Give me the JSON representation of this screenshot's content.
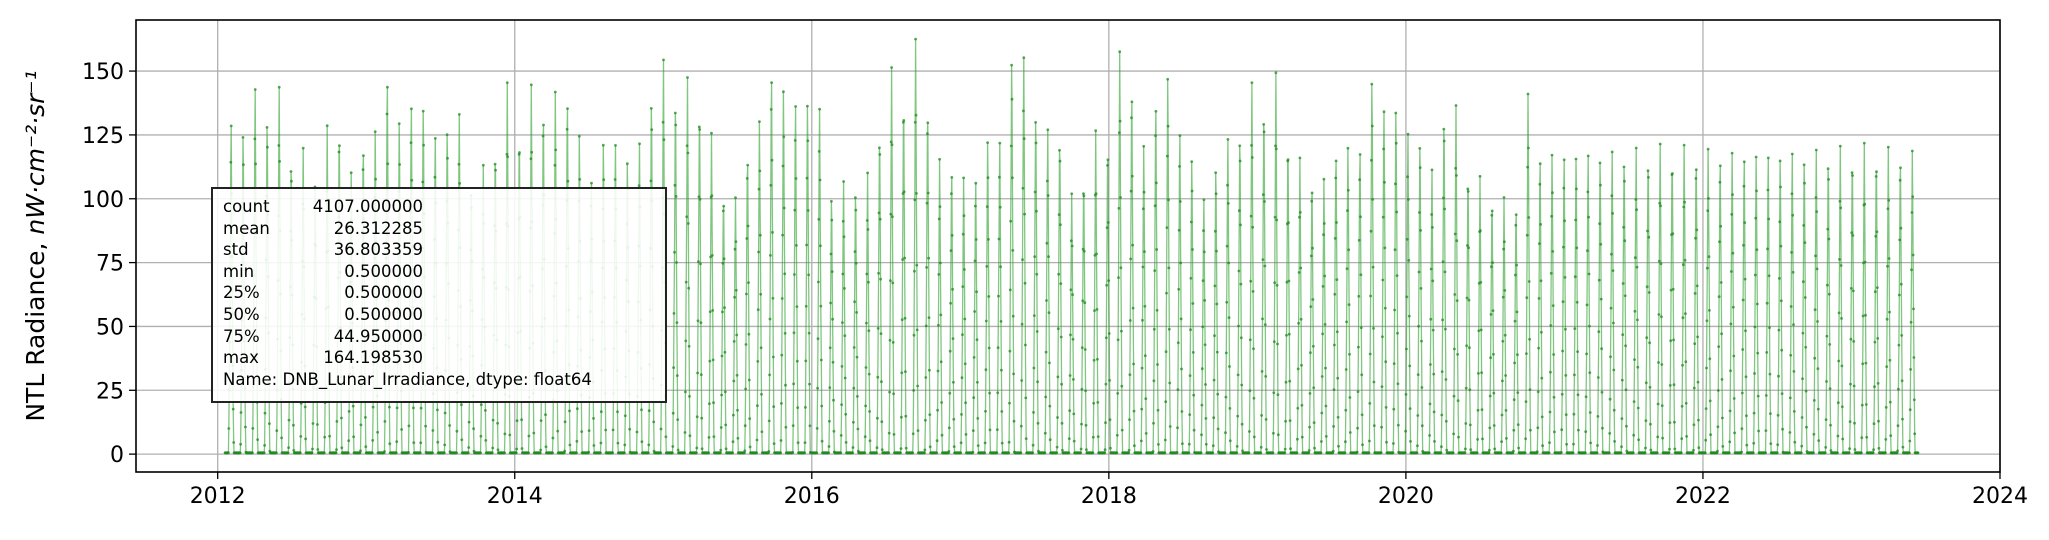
{
  "chart_data": {
    "type": "line",
    "ylabel_text": "NTL Radiance, ",
    "ylabel_unit": "nW·cm⁻²·sr⁻¹",
    "xlim": [
      2011.45,
      2024.0
    ],
    "ylim": [
      -7,
      170
    ],
    "x_ticks": [
      2012,
      2014,
      2016,
      2018,
      2020,
      2022,
      2024
    ],
    "x_tick_labels": [
      "2012",
      "2014",
      "2016",
      "2018",
      "2020",
      "2022",
      "2024"
    ],
    "y_ticks": [
      0,
      25,
      50,
      75,
      100,
      125,
      150
    ],
    "y_tick_labels": [
      "0",
      "25",
      "50",
      "75",
      "100",
      "125",
      "150"
    ],
    "grid": true,
    "series_color": "#2ca02c",
    "marker_color": "#228b22",
    "x_start": 2012.05,
    "x_end": 2023.45,
    "lunar_cycle_years": 0.080852,
    "monthly_peaks": [
      135,
      132,
      148,
      138,
      147,
      121,
      121,
      116,
      129,
      133,
      112,
      127,
      130,
      154,
      135,
      143,
      142,
      129,
      134,
      137,
      110,
      115,
      125,
      146,
      131,
      146,
      141,
      145,
      146,
      129,
      113,
      127,
      127,
      121,
      126,
      146,
      158,
      146,
      149,
      142,
      126,
      107,
      102,
      123,
      134,
      156,
      148,
      144,
      144,
      141,
      106,
      110,
      109,
      112,
      132,
      152,
      145,
      164,
      142,
      118,
      117,
      112,
      113,
      128,
      128,
      162,
      161,
      140,
      130,
      130,
      103,
      113,
      127,
      127,
      160,
      150,
      124,
      144,
      153,
      132,
      121,
      104,
      118,
      127,
      131,
      148,
      142,
      150,
      128,
      117,
      112,
      110,
      124,
      124,
      125,
      152,
      141,
      142,
      130,
      129,
      114,
      139,
      138,
      115,
      109,
      105,
      102,
      102,
      145,
      122
    ],
    "stats_table": [
      {
        "key": "count",
        "value": "4107.000000"
      },
      {
        "key": "mean",
        "value": "26.312285"
      },
      {
        "key": "std",
        "value": "36.803359"
      },
      {
        "key": "min",
        "value": "0.500000"
      },
      {
        "key": "25%",
        "value": "0.500000"
      },
      {
        "key": "50%",
        "value": "0.500000"
      },
      {
        "key": "75%",
        "value": "44.950000"
      },
      {
        "key": "max",
        "value": "164.198530"
      }
    ],
    "stats_footer": "Name: DNB_Lunar_Irradiance, dtype: float64"
  }
}
